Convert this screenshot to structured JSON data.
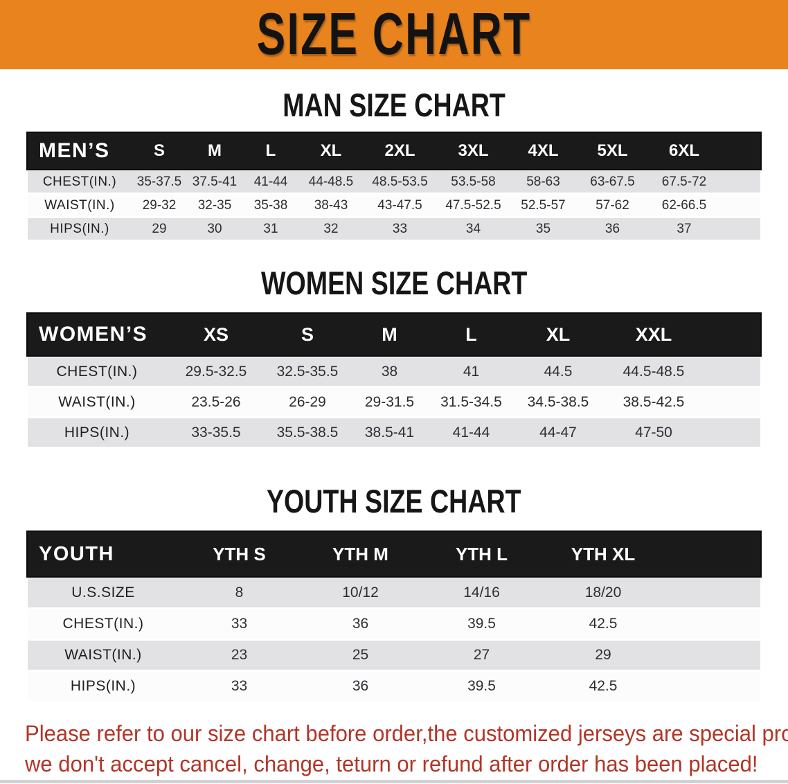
{
  "banner": {
    "title": "SIZE CHART"
  },
  "tables": {
    "men": {
      "heading": "MAN SIZE CHART",
      "corner": "MEN’S",
      "sizes": [
        "S",
        "M",
        "L",
        "XL",
        "2XL",
        "3XL",
        "4XL",
        "5XL",
        "6XL"
      ],
      "rows": [
        {
          "label": "CHEST(IN.)",
          "values": [
            "35-37.5",
            "37.5-41",
            "41-44",
            "44-48.5",
            "48.5-53.5",
            "53.5-58",
            "58-63",
            "63-67.5",
            "67.5-72"
          ]
        },
        {
          "label": "WAIST(IN.)",
          "values": [
            "29-32",
            "32-35",
            "35-38",
            "38-43",
            "43-47.5",
            "47.5-52.5",
            "52.5-57",
            "57-62",
            "62-66.5"
          ]
        },
        {
          "label": "HIPS(IN.)",
          "values": [
            "29",
            "30",
            "31",
            "32",
            "33",
            "34",
            "35",
            "36",
            "37"
          ]
        }
      ]
    },
    "women": {
      "heading": "WOMEN SIZE CHART",
      "corner": "WOMEN’S",
      "sizes": [
        "XS",
        "S",
        "M",
        "L",
        "XL",
        "XXL"
      ],
      "rows": [
        {
          "label": "CHEST(IN.)",
          "values": [
            "29.5-32.5",
            "32.5-35.5",
            "38",
            "41",
            "44.5",
            "44.5-48.5"
          ]
        },
        {
          "label": "WAIST(IN.)",
          "values": [
            "23.5-26",
            "26-29",
            "29-31.5",
            "31.5-34.5",
            "34.5-38.5",
            "38.5-42.5"
          ]
        },
        {
          "label": "HIPS(IN.)",
          "values": [
            "33-35.5",
            "35.5-38.5",
            "38.5-41",
            "41-44",
            "44-47",
            "47-50"
          ]
        }
      ]
    },
    "youth": {
      "heading": "YOUTH SIZE CHART",
      "corner": "YOUTH",
      "sizes": [
        "YTH S",
        "YTH M",
        "YTH L",
        "YTH XL"
      ],
      "rows": [
        {
          "label": "U.S.SIZE",
          "values": [
            "8",
            "10/12",
            "14/16",
            "18/20"
          ]
        },
        {
          "label": "CHEST(IN.)",
          "values": [
            "33",
            "36",
            "39.5",
            "42.5"
          ]
        },
        {
          "label": "WAIST(IN.)",
          "values": [
            "23",
            "25",
            "27",
            "29"
          ]
        },
        {
          "label": "HIPS(IN.)",
          "values": [
            "33",
            "36",
            "39.5",
            "42.5"
          ]
        }
      ]
    }
  },
  "disclaimer": {
    "line1": "Please refer to our size chart before order,the customized jerseys are special products,",
    "line2": "we don't accept cancel, change, teturn or refund after order has been placed!"
  },
  "colors": {
    "banner_orange": "#E8831E",
    "header_black": "#1a1a1a",
    "row_gray": "#e2e2e4",
    "row_white": "#fcfcfc",
    "disclaimer_red": "#b23527"
  }
}
